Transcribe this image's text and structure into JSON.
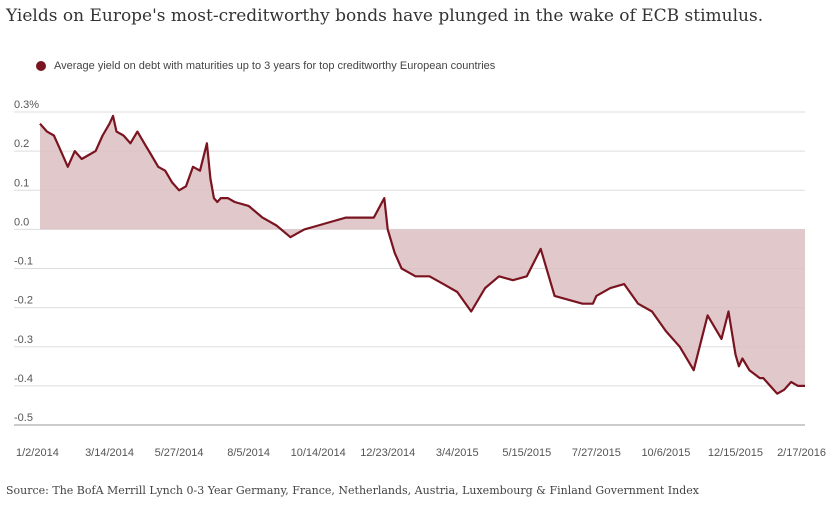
{
  "chart_data": {
    "type": "area",
    "title": "Yields on Europe's most-creditworthy bonds have plunged in the wake of ECB stimulus.",
    "series_name": "Average yield on debt with maturities up to 3 years for top creditworthy European countries",
    "color": "#7a1420",
    "fill_color": "#dcc0c2",
    "grid": true,
    "ylim": [
      -0.5,
      0.3
    ],
    "y_ticks": [
      0.3,
      0.2,
      0.1,
      0.0,
      -0.1,
      -0.2,
      -0.3,
      -0.4,
      -0.5
    ],
    "y_tick_labels": [
      "0.3%",
      "0.2",
      "0.1",
      "0.0",
      "-0.1",
      "-0.2",
      "-0.3",
      "-0.4",
      "-0.5"
    ],
    "x_tick_labels": [
      "1/2/2014",
      "3/14/2014",
      "5/27/2014",
      "8/5/2014",
      "10/14/2014",
      "12/23/2014",
      "3/4/2015",
      "5/15/2015",
      "7/27/2015",
      "10/6/2015",
      "12/15/2015",
      "2/17/2016"
    ],
    "x_range": [
      0,
      11
    ],
    "x": [
      0,
      0.1,
      0.2,
      0.3,
      0.4,
      0.5,
      0.6,
      0.7,
      0.8,
      0.9,
      1.0,
      1.05,
      1.1,
      1.2,
      1.3,
      1.4,
      1.5,
      1.6,
      1.7,
      1.8,
      1.9,
      2.0,
      2.1,
      2.2,
      2.3,
      2.4,
      2.45,
      2.5,
      2.55,
      2.6,
      2.7,
      2.8,
      3.0,
      3.2,
      3.4,
      3.6,
      3.8,
      4.0,
      4.2,
      4.4,
      4.6,
      4.8,
      4.95,
      5.0,
      5.1,
      5.2,
      5.3,
      5.4,
      5.6,
      5.8,
      6.0,
      6.2,
      6.4,
      6.6,
      6.8,
      7.0,
      7.2,
      7.4,
      7.6,
      7.8,
      7.9,
      7.95,
      8.0,
      8.2,
      8.4,
      8.6,
      8.8,
      9.0,
      9.2,
      9.4,
      9.6,
      9.8,
      9.9,
      10.0,
      10.05,
      10.1,
      10.2,
      10.35,
      10.4,
      10.5,
      10.6,
      10.7,
      10.8,
      10.9,
      11.0
    ],
    "values": [
      0.27,
      0.25,
      0.24,
      0.2,
      0.16,
      0.2,
      0.18,
      0.19,
      0.2,
      0.24,
      0.27,
      0.29,
      0.25,
      0.24,
      0.22,
      0.25,
      0.22,
      0.19,
      0.16,
      0.15,
      0.12,
      0.1,
      0.11,
      0.16,
      0.15,
      0.22,
      0.13,
      0.08,
      0.07,
      0.08,
      0.08,
      0.07,
      0.06,
      0.03,
      0.01,
      -0.02,
      0.0,
      0.01,
      0.02,
      0.03,
      0.03,
      0.03,
      0.08,
      0.0,
      -0.06,
      -0.1,
      -0.11,
      -0.12,
      -0.12,
      -0.14,
      -0.16,
      -0.21,
      -0.15,
      -0.12,
      -0.13,
      -0.12,
      -0.05,
      -0.17,
      -0.18,
      -0.19,
      -0.19,
      -0.19,
      -0.17,
      -0.15,
      -0.14,
      -0.19,
      -0.21,
      -0.26,
      -0.3,
      -0.36,
      -0.22,
      -0.28,
      -0.21,
      -0.32,
      -0.35,
      -0.33,
      -0.36,
      -0.38,
      -0.38,
      -0.4,
      -0.42,
      -0.41,
      -0.39,
      -0.4,
      -0.4
    ]
  },
  "source": "Source: The BofA Merrill Lynch 0-3 Year Germany, France, Netherlands, Austria, Luxembourg & Finland Government Index"
}
